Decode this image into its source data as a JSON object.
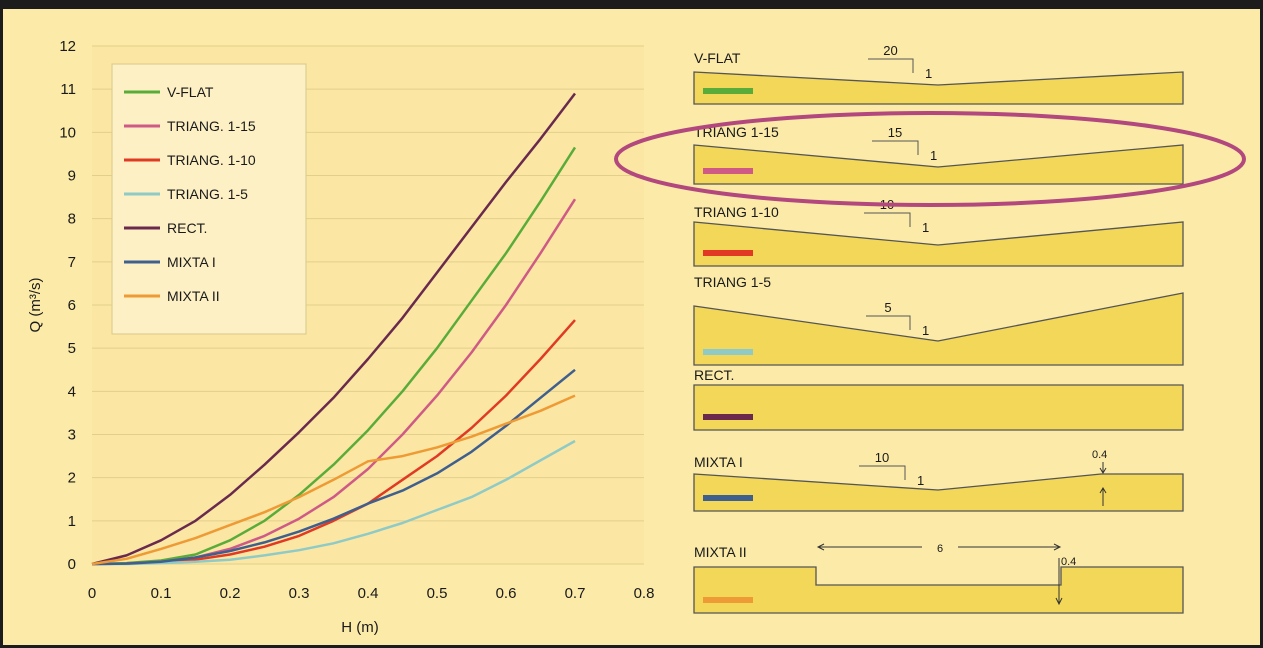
{
  "chart_data": {
    "type": "line",
    "xlabel": "H (m)",
    "ylabel": "Q (m³/s)",
    "xlim": [
      0,
      0.8
    ],
    "ylim": [
      0,
      12
    ],
    "xticks": [
      "0",
      "0.1",
      "0.2",
      "0.3",
      "0.4",
      "0.5",
      "0.6",
      "0.7",
      "0.8"
    ],
    "yticks": [
      "0",
      "1",
      "2",
      "3",
      "4",
      "5",
      "6",
      "7",
      "8",
      "9",
      "10",
      "11",
      "12"
    ],
    "grid": "horizontal",
    "legend_position": "top-left",
    "series": [
      {
        "name": "V-FLAT",
        "color": "#5aac3a",
        "points": [
          [
            0,
            0
          ],
          [
            0.05,
            0.02
          ],
          [
            0.1,
            0.08
          ],
          [
            0.15,
            0.22
          ],
          [
            0.2,
            0.55
          ],
          [
            0.25,
            1.0
          ],
          [
            0.3,
            1.6
          ],
          [
            0.35,
            2.3
          ],
          [
            0.4,
            3.1
          ],
          [
            0.45,
            4.0
          ],
          [
            0.5,
            5.0
          ],
          [
            0.55,
            6.1
          ],
          [
            0.6,
            7.2
          ],
          [
            0.65,
            8.4
          ],
          [
            0.7,
            9.65
          ]
        ]
      },
      {
        "name": "TRIANG. 1-15",
        "color": "#cf5a86",
        "points": [
          [
            0,
            0
          ],
          [
            0.05,
            0.01
          ],
          [
            0.1,
            0.05
          ],
          [
            0.15,
            0.15
          ],
          [
            0.2,
            0.35
          ],
          [
            0.25,
            0.65
          ],
          [
            0.3,
            1.05
          ],
          [
            0.35,
            1.55
          ],
          [
            0.4,
            2.2
          ],
          [
            0.45,
            3.0
          ],
          [
            0.5,
            3.9
          ],
          [
            0.55,
            4.9
          ],
          [
            0.6,
            6.0
          ],
          [
            0.65,
            7.2
          ],
          [
            0.7,
            8.45
          ]
        ]
      },
      {
        "name": "TRIANG. 1-10",
        "color": "#e03a24",
        "points": [
          [
            0,
            0
          ],
          [
            0.05,
            0.01
          ],
          [
            0.1,
            0.04
          ],
          [
            0.15,
            0.1
          ],
          [
            0.2,
            0.22
          ],
          [
            0.25,
            0.4
          ],
          [
            0.3,
            0.65
          ],
          [
            0.35,
            1.0
          ],
          [
            0.4,
            1.4
          ],
          [
            0.45,
            1.95
          ],
          [
            0.5,
            2.5
          ],
          [
            0.55,
            3.15
          ],
          [
            0.6,
            3.9
          ],
          [
            0.65,
            4.75
          ],
          [
            0.7,
            5.65
          ]
        ]
      },
      {
        "name": "TRIANG. 1-5",
        "color": "#8fcac6",
        "points": [
          [
            0,
            0
          ],
          [
            0.05,
            0.0
          ],
          [
            0.1,
            0.02
          ],
          [
            0.15,
            0.05
          ],
          [
            0.2,
            0.1
          ],
          [
            0.25,
            0.2
          ],
          [
            0.3,
            0.32
          ],
          [
            0.35,
            0.48
          ],
          [
            0.4,
            0.7
          ],
          [
            0.45,
            0.95
          ],
          [
            0.5,
            1.25
          ],
          [
            0.55,
            1.55
          ],
          [
            0.6,
            1.95
          ],
          [
            0.65,
            2.4
          ],
          [
            0.7,
            2.85
          ]
        ]
      },
      {
        "name": "RECT.",
        "color": "#6a2a4e",
        "points": [
          [
            0,
            0
          ],
          [
            0.05,
            0.2
          ],
          [
            0.1,
            0.55
          ],
          [
            0.15,
            1.0
          ],
          [
            0.2,
            1.6
          ],
          [
            0.25,
            2.3
          ],
          [
            0.3,
            3.05
          ],
          [
            0.35,
            3.85
          ],
          [
            0.4,
            4.75
          ],
          [
            0.45,
            5.7
          ],
          [
            0.5,
            6.75
          ],
          [
            0.55,
            7.8
          ],
          [
            0.6,
            8.85
          ],
          [
            0.65,
            9.85
          ],
          [
            0.7,
            10.9
          ]
        ]
      },
      {
        "name": "MIXTA I",
        "color": "#3f5f8e",
        "points": [
          [
            0,
            0
          ],
          [
            0.05,
            0.01
          ],
          [
            0.1,
            0.05
          ],
          [
            0.15,
            0.15
          ],
          [
            0.2,
            0.3
          ],
          [
            0.25,
            0.5
          ],
          [
            0.3,
            0.75
          ],
          [
            0.35,
            1.05
          ],
          [
            0.4,
            1.4
          ],
          [
            0.45,
            1.7
          ],
          [
            0.5,
            2.1
          ],
          [
            0.55,
            2.6
          ],
          [
            0.6,
            3.2
          ],
          [
            0.65,
            3.85
          ],
          [
            0.7,
            4.5
          ]
        ]
      },
      {
        "name": "MIXTA II",
        "color": "#ee9a35",
        "points": [
          [
            0,
            0
          ],
          [
            0.05,
            0.12
          ],
          [
            0.1,
            0.35
          ],
          [
            0.15,
            0.6
          ],
          [
            0.2,
            0.9
          ],
          [
            0.25,
            1.2
          ],
          [
            0.3,
            1.55
          ],
          [
            0.35,
            1.95
          ],
          [
            0.4,
            2.38
          ],
          [
            0.45,
            2.5
          ],
          [
            0.5,
            2.7
          ],
          [
            0.55,
            2.95
          ],
          [
            0.6,
            3.25
          ],
          [
            0.65,
            3.55
          ],
          [
            0.7,
            3.9
          ]
        ]
      }
    ]
  },
  "cross_sections": [
    {
      "label": "V-FLAT",
      "run": "20",
      "rise": "1",
      "color": "#5aac3a"
    },
    {
      "label": "TRIANG 1-15",
      "run": "15",
      "rise": "1",
      "color": "#cf5a86",
      "highlighted": true
    },
    {
      "label": "TRIANG 1-10",
      "run": "10",
      "rise": "1",
      "color": "#e03a24"
    },
    {
      "label": "TRIANG 1-5",
      "run": "5",
      "rise": "1",
      "color": "#8fcac6"
    },
    {
      "label": "RECT.",
      "color": "#6a2a4e"
    },
    {
      "label": "MIXTA I",
      "run": "10",
      "rise": "1",
      "depth": "0.4",
      "color": "#3f5f8e"
    },
    {
      "label": "MIXTA II",
      "width": "6",
      "depth": "0.4",
      "color": "#ee9a35"
    }
  ],
  "highlight_color": "#b2487e"
}
